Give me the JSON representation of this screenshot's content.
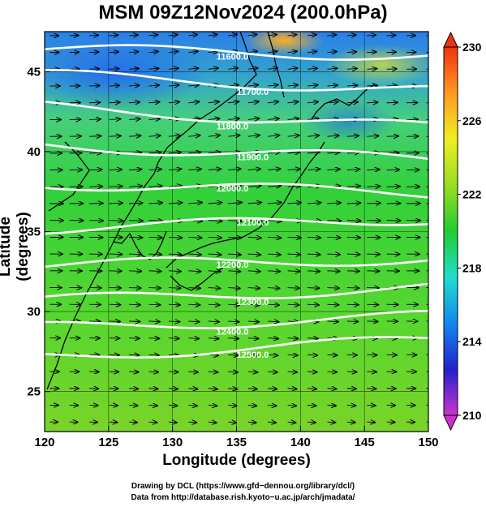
{
  "title": "MSM 09Z12Nov2024 (200.0hPa)",
  "x_axis": {
    "label": "Longitude (degrees)",
    "ticks": [
      "120",
      "125",
      "130",
      "135",
      "140",
      "145",
      "150"
    ],
    "range": [
      120,
      150
    ]
  },
  "y_axis": {
    "label": "Latitude  (degrees)",
    "ticks": [
      "25",
      "30",
      "35",
      "40",
      "45"
    ],
    "range": [
      22.5,
      47.5
    ]
  },
  "colorbar": {
    "ticks": [
      "210",
      "214",
      "218",
      "222",
      "226",
      "230"
    ],
    "range": [
      210,
      230
    ],
    "colors": [
      "#cc33cc",
      "#2222cc",
      "#1188ee",
      "#22ddcc",
      "#22cc33",
      "#99dd22",
      "#eeee22",
      "#ff9922",
      "#ee3311"
    ]
  },
  "contours": [
    {
      "value": 11600,
      "label": "11600.0",
      "lat_west": 46.4,
      "lat_east": 46.0
    },
    {
      "value": 11700,
      "label": "11700.0",
      "lat_west": 44.8,
      "lat_east": 43.8
    },
    {
      "value": 11800,
      "label": "11800.0",
      "lat_west": 42.8,
      "lat_east": 41.5
    },
    {
      "value": 11900,
      "label": "11900.0",
      "lat_west": 40.4,
      "lat_east": 39.5
    },
    {
      "value": 12000,
      "label": "12000.0",
      "lat_west": 38.0,
      "lat_east": 37.4
    },
    {
      "value": 12100,
      "label": "12100.0",
      "lat_west": 35.2,
      "lat_east": 35.8
    },
    {
      "value": 12200,
      "label": "12200.0",
      "lat_west": 32.9,
      "lat_east": 33.3
    },
    {
      "value": 12300,
      "label": "12300.0",
      "lat_west": 30.7,
      "lat_east": 31.5
    },
    {
      "value": 12400,
      "label": "12400.0",
      "lat_west": 29.0,
      "lat_east": 29.7
    },
    {
      "value": 12500,
      "label": "12500.0",
      "lat_west": 27.2,
      "lat_east": 28.2
    }
  ],
  "wind_field": {
    "direction": "westerly",
    "jet_axis_lat": 36
  },
  "credit_line1": "Drawing by DCL (https://www.gfd−dennou.org/library/dcl/)",
  "credit_line2": "Data from http://database.rish.kyoto−u.ac.jp/arch/jmadata/"
}
